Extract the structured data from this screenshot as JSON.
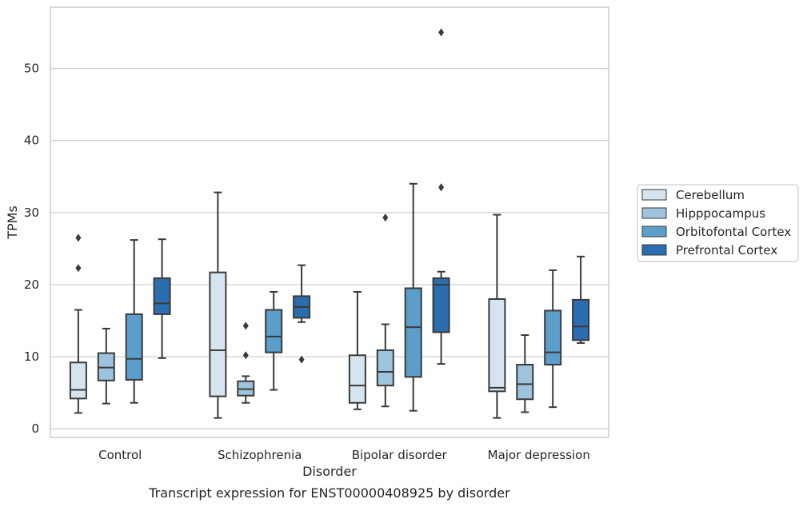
{
  "chart_data": {
    "type": "box",
    "caption": "Transcript expression for ENST00000408925 by disorder",
    "xlabel": "Disorder",
    "ylabel": "TPMs",
    "ylim": [
      -1.2,
      58.5
    ],
    "yticks": [
      0,
      10,
      20,
      30,
      40,
      50
    ],
    "grid": "horizontal",
    "legend_position": "right",
    "categories": [
      "Control",
      "Schizophrenia",
      "Bipolar disorder",
      "Major depression"
    ],
    "series": [
      {
        "name": "Cerebellum",
        "color": "#d6e4f0",
        "boxes": [
          {
            "whislo": 2.2,
            "q1": 4.2,
            "med": 5.4,
            "q3": 9.2,
            "whishi": 16.5,
            "fliers": [
              26.5,
              22.3
            ]
          },
          {
            "whislo": 1.5,
            "q1": 4.5,
            "med": 10.9,
            "q3": 21.7,
            "whishi": 32.8,
            "fliers": []
          },
          {
            "whislo": 2.7,
            "q1": 3.6,
            "med": 6.0,
            "q3": 10.2,
            "whishi": 19.0,
            "fliers": []
          },
          {
            "whislo": 1.5,
            "q1": 5.2,
            "med": 5.7,
            "q3": 18.0,
            "whishi": 29.7,
            "fliers": []
          }
        ]
      },
      {
        "name": "Hipppocampus",
        "color": "#9ec3dc",
        "boxes": [
          {
            "whislo": 3.5,
            "q1": 6.7,
            "med": 8.5,
            "q3": 10.5,
            "whishi": 13.9,
            "fliers": []
          },
          {
            "whislo": 3.6,
            "q1": 4.6,
            "med": 5.5,
            "q3": 6.6,
            "whishi": 7.3,
            "fliers": [
              14.3,
              10.2
            ]
          },
          {
            "whislo": 3.1,
            "q1": 6.0,
            "med": 7.9,
            "q3": 10.9,
            "whishi": 14.5,
            "fliers": [
              29.3
            ]
          },
          {
            "whislo": 2.3,
            "q1": 4.1,
            "med": 6.2,
            "q3": 8.9,
            "whishi": 13.0,
            "fliers": []
          }
        ]
      },
      {
        "name": "Orbitofontal Cortex",
        "color": "#5b9dcb",
        "boxes": [
          {
            "whislo": 3.6,
            "q1": 6.8,
            "med": 9.7,
            "q3": 15.9,
            "whishi": 26.2,
            "fliers": []
          },
          {
            "whislo": 5.4,
            "q1": 10.6,
            "med": 12.8,
            "q3": 16.5,
            "whishi": 19.0,
            "fliers": []
          },
          {
            "whislo": 2.5,
            "q1": 7.2,
            "med": 14.1,
            "q3": 19.5,
            "whishi": 34.0,
            "fliers": []
          },
          {
            "whislo": 3.0,
            "q1": 8.9,
            "med": 10.6,
            "q3": 16.4,
            "whishi": 22.0,
            "fliers": []
          }
        ]
      },
      {
        "name": "Prefrontal Cortex",
        "color": "#2a6eb0",
        "boxes": [
          {
            "whislo": 9.8,
            "q1": 15.9,
            "med": 17.4,
            "q3": 20.9,
            "whishi": 26.3,
            "fliers": []
          },
          {
            "whislo": 14.8,
            "q1": 15.4,
            "med": 16.9,
            "q3": 18.4,
            "whishi": 22.7,
            "fliers": [
              9.6
            ]
          },
          {
            "whislo": 9.0,
            "q1": 13.4,
            "med": 20.0,
            "q3": 20.9,
            "whishi": 21.8,
            "fliers": [
              55.0,
              33.5
            ]
          },
          {
            "whislo": 11.9,
            "q1": 12.3,
            "med": 14.2,
            "q3": 17.9,
            "whishi": 23.9,
            "fliers": []
          }
        ]
      }
    ]
  }
}
